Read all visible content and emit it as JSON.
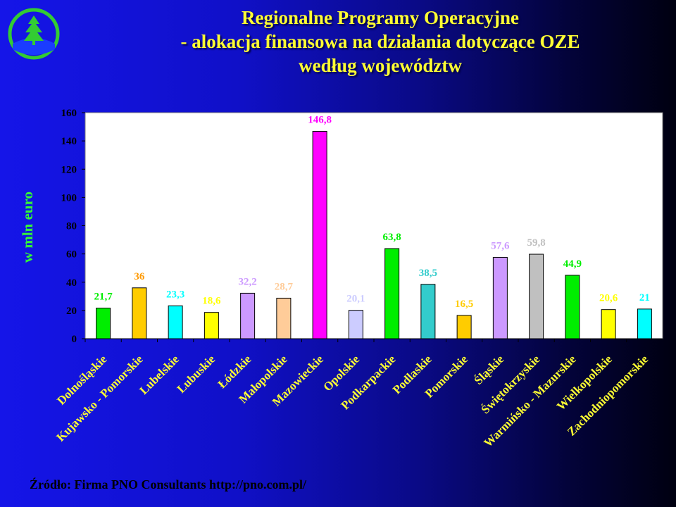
{
  "title_lines": [
    "Regionalne Programy Operacyjne",
    "- alokacja finansowa na działania dotyczące OZE",
    "według województw"
  ],
  "source_text": "Źródło: Firma PNO Consultants http://pno.com.pl/",
  "colors": {
    "title": "#ffff33",
    "ylabel": "#33ff33",
    "plot_bg": "#ffffff",
    "axis_text": "#000000",
    "category_text": "#ffff33"
  },
  "chart_data": {
    "type": "bar",
    "title": "",
    "ylabel": "w mln euro",
    "xlabel": "",
    "ylim": [
      0,
      160
    ],
    "yticks": [
      0,
      20,
      40,
      60,
      80,
      100,
      120,
      140,
      160
    ],
    "grid": false,
    "legend": "none",
    "categories": [
      "Dolnośląskie",
      "Kujawsko - Pomorskie",
      "Lubelskie",
      "Lubuskie",
      "Łódzkie",
      "Małopolskie",
      "Mazowieckie",
      "Opolskie",
      "Podkarpackie",
      "Podlaskie",
      "Pomorskie",
      "Śląskie",
      "Świętokrzyskie",
      "Warmińsko - Mazurskie",
      "Wielkopolskie",
      "Zachodniopomorskie"
    ],
    "values": [
      21.7,
      36,
      23.3,
      18.6,
      32.2,
      28.7,
      146.8,
      20.1,
      63.8,
      38.5,
      16.5,
      57.6,
      59.8,
      44.9,
      20.6,
      21
    ],
    "value_labels": [
      "21,7",
      "36",
      "23,3",
      "18,6",
      "32,2",
      "28,7",
      "146,8",
      "20,1",
      "63,8",
      "38,5",
      "16,5",
      "57,6",
      "59,8",
      "44,9",
      "20,6",
      "21"
    ],
    "bar_colors": [
      "#00ee00",
      "#ffcc00",
      "#00ffff",
      "#ffff00",
      "#cc99ff",
      "#ffcc99",
      "#ff00ff",
      "#ccccff",
      "#00ee00",
      "#33cccc",
      "#ffcc00",
      "#cc99ff",
      "#c0c0c0",
      "#00ee00",
      "#ffff00",
      "#00ffff"
    ],
    "label_colors": [
      "#00ee00",
      "#ff9900",
      "#00ffff",
      "#ffff00",
      "#cc99ff",
      "#ffcc99",
      "#ff00ff",
      "#ccccff",
      "#00ee00",
      "#33cccc",
      "#ffcc00",
      "#cc99ff",
      "#c0c0c0",
      "#00ee00",
      "#ffff00",
      "#00ffff"
    ]
  }
}
